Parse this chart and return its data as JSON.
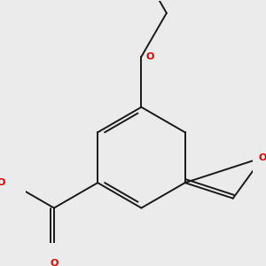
{
  "bg": "#ebebeb",
  "bc": "#1a1a1a",
  "oc": "#dd0000",
  "lw": 1.4,
  "dbg": 0.07,
  "figsize": [
    3.0,
    3.0
  ],
  "dpi": 100,
  "xlim": [
    -2.2,
    2.3
  ],
  "ylim": [
    -2.0,
    2.8
  ]
}
